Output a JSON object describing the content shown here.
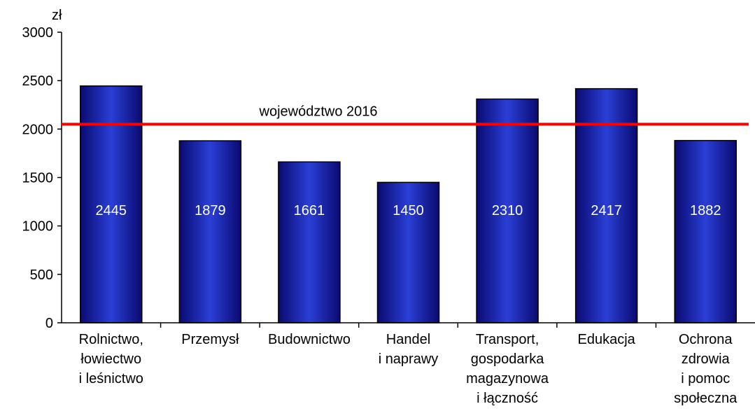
{
  "chart_data": {
    "type": "bar",
    "y_unit": "zł",
    "categories": [
      "Rolnictwo,\nłowiectwo\ni leśnictwo",
      "Przemysł",
      "Budownictwo",
      "Handel\ni naprawy",
      "Transport,\ngospodarka\nmagazynowa\ni łączność",
      "Edukacja",
      "Ochrona\nzdrowia\ni pomoc\nspołeczna"
    ],
    "values": [
      2445,
      1879,
      1661,
      1450,
      2310,
      2417,
      1882
    ],
    "color": "#2a3fd6",
    "ylim": [
      0,
      3000
    ],
    "yticks": [
      0,
      500,
      1000,
      1500,
      2000,
      2500,
      3000
    ],
    "grid": false,
    "reference_line": {
      "label": "województwo 2016",
      "value": 2050,
      "color": "#ff0000"
    }
  }
}
